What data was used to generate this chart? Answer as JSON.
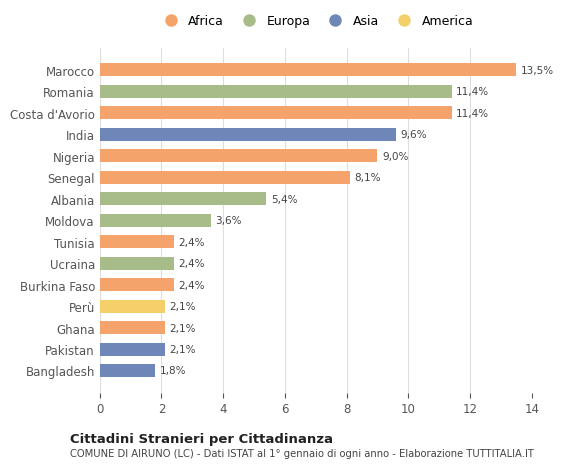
{
  "categories": [
    "Bangladesh",
    "Pakistan",
    "Ghana",
    "Perù",
    "Burkina Faso",
    "Ucraina",
    "Tunisia",
    "Moldova",
    "Albania",
    "Senegal",
    "Nigeria",
    "India",
    "Costa d'Avorio",
    "Romania",
    "Marocco"
  ],
  "values": [
    1.8,
    2.1,
    2.1,
    2.1,
    2.4,
    2.4,
    2.4,
    3.6,
    5.4,
    8.1,
    9.0,
    9.6,
    11.4,
    11.4,
    13.5
  ],
  "labels": [
    "1,8%",
    "2,1%",
    "2,1%",
    "2,1%",
    "2,4%",
    "2,4%",
    "2,4%",
    "3,6%",
    "5,4%",
    "8,1%",
    "9,0%",
    "9,6%",
    "11,4%",
    "11,4%",
    "13,5%"
  ],
  "continents": [
    "Asia",
    "Asia",
    "Africa",
    "America",
    "Africa",
    "Europa",
    "Africa",
    "Europa",
    "Europa",
    "Africa",
    "Africa",
    "Asia",
    "Africa",
    "Europa",
    "Africa"
  ],
  "colors": {
    "Africa": "#F4A46A",
    "Europa": "#A8BC8A",
    "Asia": "#6E87B8",
    "America": "#F5D06A"
  },
  "legend_order": [
    "Africa",
    "Europa",
    "Asia",
    "America"
  ],
  "title1": "Cittadini Stranieri per Cittadinanza",
  "title2": "COMUNE DI AIRUNO (LC) - Dati ISTAT al 1° gennaio di ogni anno - Elaborazione TUTTITALIA.IT",
  "xlim": [
    0,
    14
  ],
  "xticks": [
    0,
    2,
    4,
    6,
    8,
    10,
    12,
    14
  ],
  "bg_color": "#ffffff",
  "grid_color": "#dddddd"
}
